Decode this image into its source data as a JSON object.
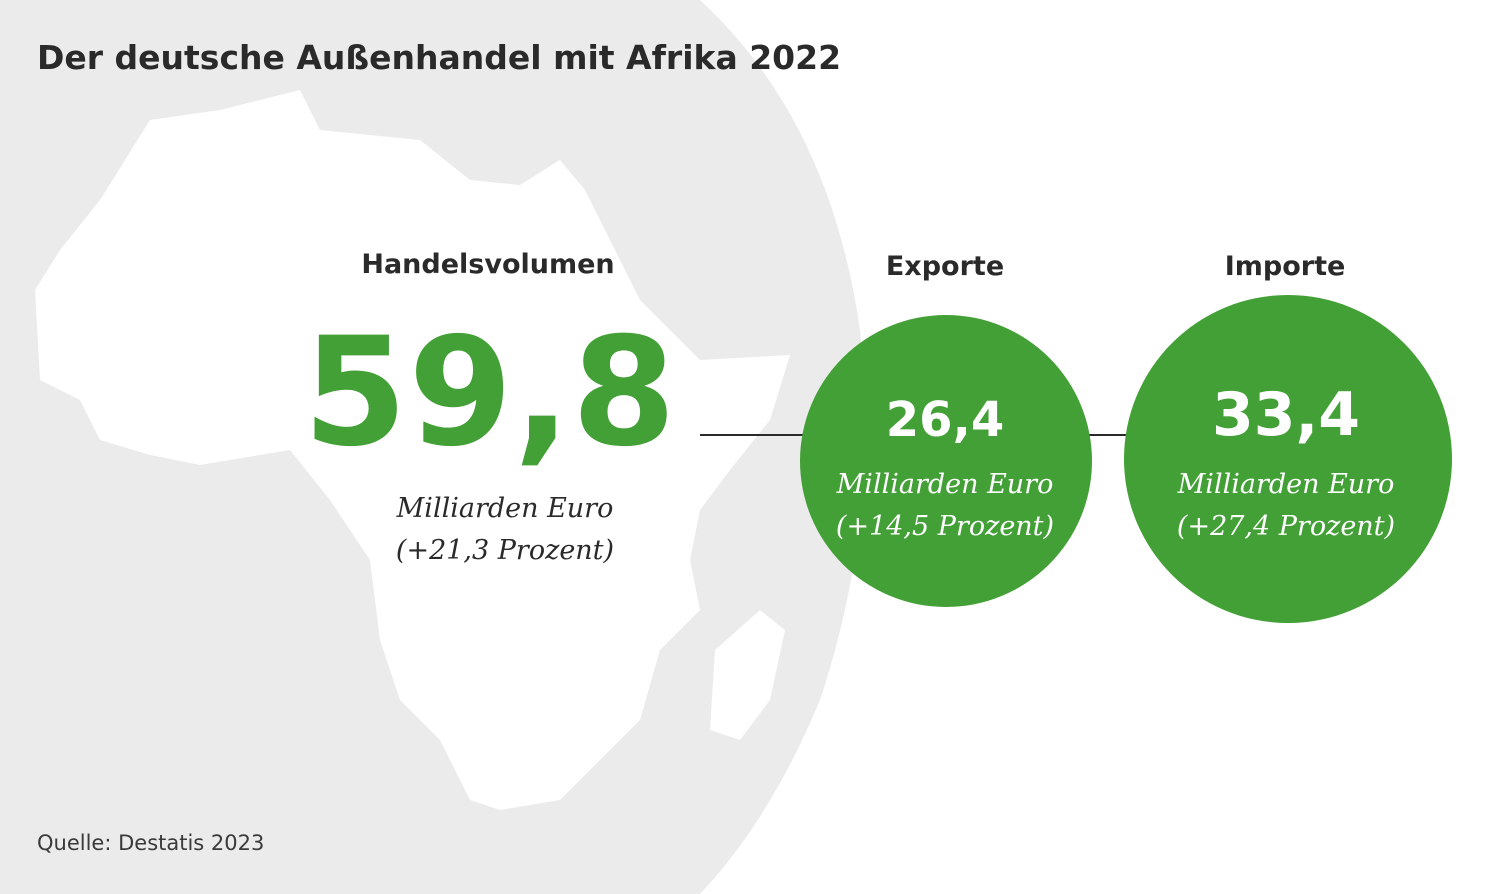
{
  "title": "Der deutsche Außenhandel mit Afrika 2022",
  "colors": {
    "accent_green": "#43a036",
    "background_gray": "#ebebeb",
    "map_white": "#ffffff",
    "text_dark": "#2a2a2a"
  },
  "icons": {
    "map": "africa-map-icon"
  },
  "handelsvolumen": {
    "label": "Handelsvolumen",
    "value": "59,8",
    "unit": "Milliarden Euro",
    "change": "(+21,3 Prozent)"
  },
  "exporte": {
    "label": "Exporte",
    "value": "26,4",
    "unit": "Milliarden Euro",
    "change": "(+14,5 Prozent)"
  },
  "importe": {
    "label": "Importe",
    "value": "33,4",
    "unit": "Milliarden Euro",
    "change": "(+27,4 Prozent)"
  },
  "source": "Quelle: Destatis 2023"
}
